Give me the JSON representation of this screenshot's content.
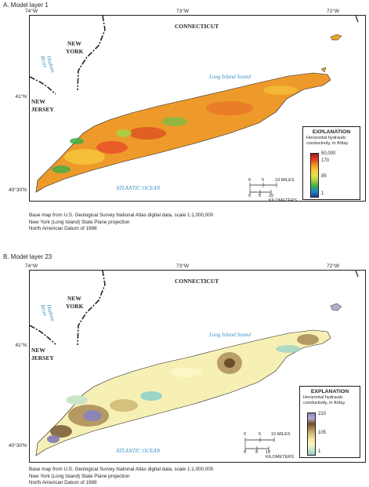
{
  "panel_a": {
    "title": "A.  Model layer 1",
    "lon_ticks": [
      "74°W",
      "73°W",
      "72°W"
    ],
    "lat_ticks": [
      "41°N",
      "40°30'N"
    ],
    "places": {
      "connecticut": "CONNECTICUT",
      "new_york_1": "NEW",
      "new_york_2": "YORK",
      "new_jersey_1": "NEW",
      "new_jersey_2": "JERSEY"
    },
    "water": {
      "hudson_1": "Hudson",
      "hudson_2": "River",
      "sound": "Long Island Sound",
      "ocean": "ATLANTIC OCEAN"
    },
    "legend": {
      "title": "EXPLANATION",
      "subtitle": "Horizontal hydraulic conductivity, in ft/day",
      "values": [
        "50,000",
        "170",
        "85",
        "1"
      ],
      "colors": [
        "#a11b1b",
        "#e23a1b",
        "#f08a20",
        "#f6c83a",
        "#e9e24a",
        "#a9cf45",
        "#3fae49",
        "#1f87c2",
        "#1c3f96"
      ]
    },
    "scale": {
      "miles": [
        "0",
        "5",
        "10 MILES"
      ],
      "km": [
        "0",
        "5",
        "10 KILOMETERS"
      ]
    },
    "credits": [
      "Base map from U.S. Geological Survey National Atlas digital data, scale 1:1,000,000",
      "New York (Long Island) State Plane projection",
      "North American Datum of 1988"
    ]
  },
  "panel_b": {
    "title": "B.  Model layer 23",
    "lon_ticks": [
      "74°W",
      "73°W",
      "72°W"
    ],
    "lat_ticks": [
      "41°N",
      "40°30'N"
    ],
    "places": {
      "connecticut": "CONNECTICUT",
      "new_york_1": "NEW",
      "new_york_2": "YORK",
      "new_jersey_1": "NEW",
      "new_jersey_2": "JERSEY"
    },
    "water": {
      "hudson_1": "Hudson",
      "hudson_2": "River",
      "sound": "Long Island Sound",
      "ocean": "ATLANTIC OCEAN"
    },
    "legend": {
      "title": "EXPLANATION",
      "subtitle": "Horizontal hydraulic conductivity, in ft/day",
      "values": [
        "210",
        "105",
        "1"
      ],
      "colors": [
        "#8e84b8",
        "#b9a9cf",
        "#6e4f2d",
        "#a98a55",
        "#d5c07c",
        "#f3ea9e",
        "#fbf6c6",
        "#c9e6c8",
        "#8fd0c8"
      ]
    },
    "scale": {
      "miles": [
        "0",
        "5",
        "10 MILES"
      ],
      "km": [
        "0",
        "5",
        "10 KILOMETERS"
      ]
    },
    "credits": [
      "Base map from U.S. Geological Survey National Atlas digital data, scale 1:1,000,000",
      "New York (Long Island) State Plane projection",
      "North American Datum of 1988"
    ]
  }
}
